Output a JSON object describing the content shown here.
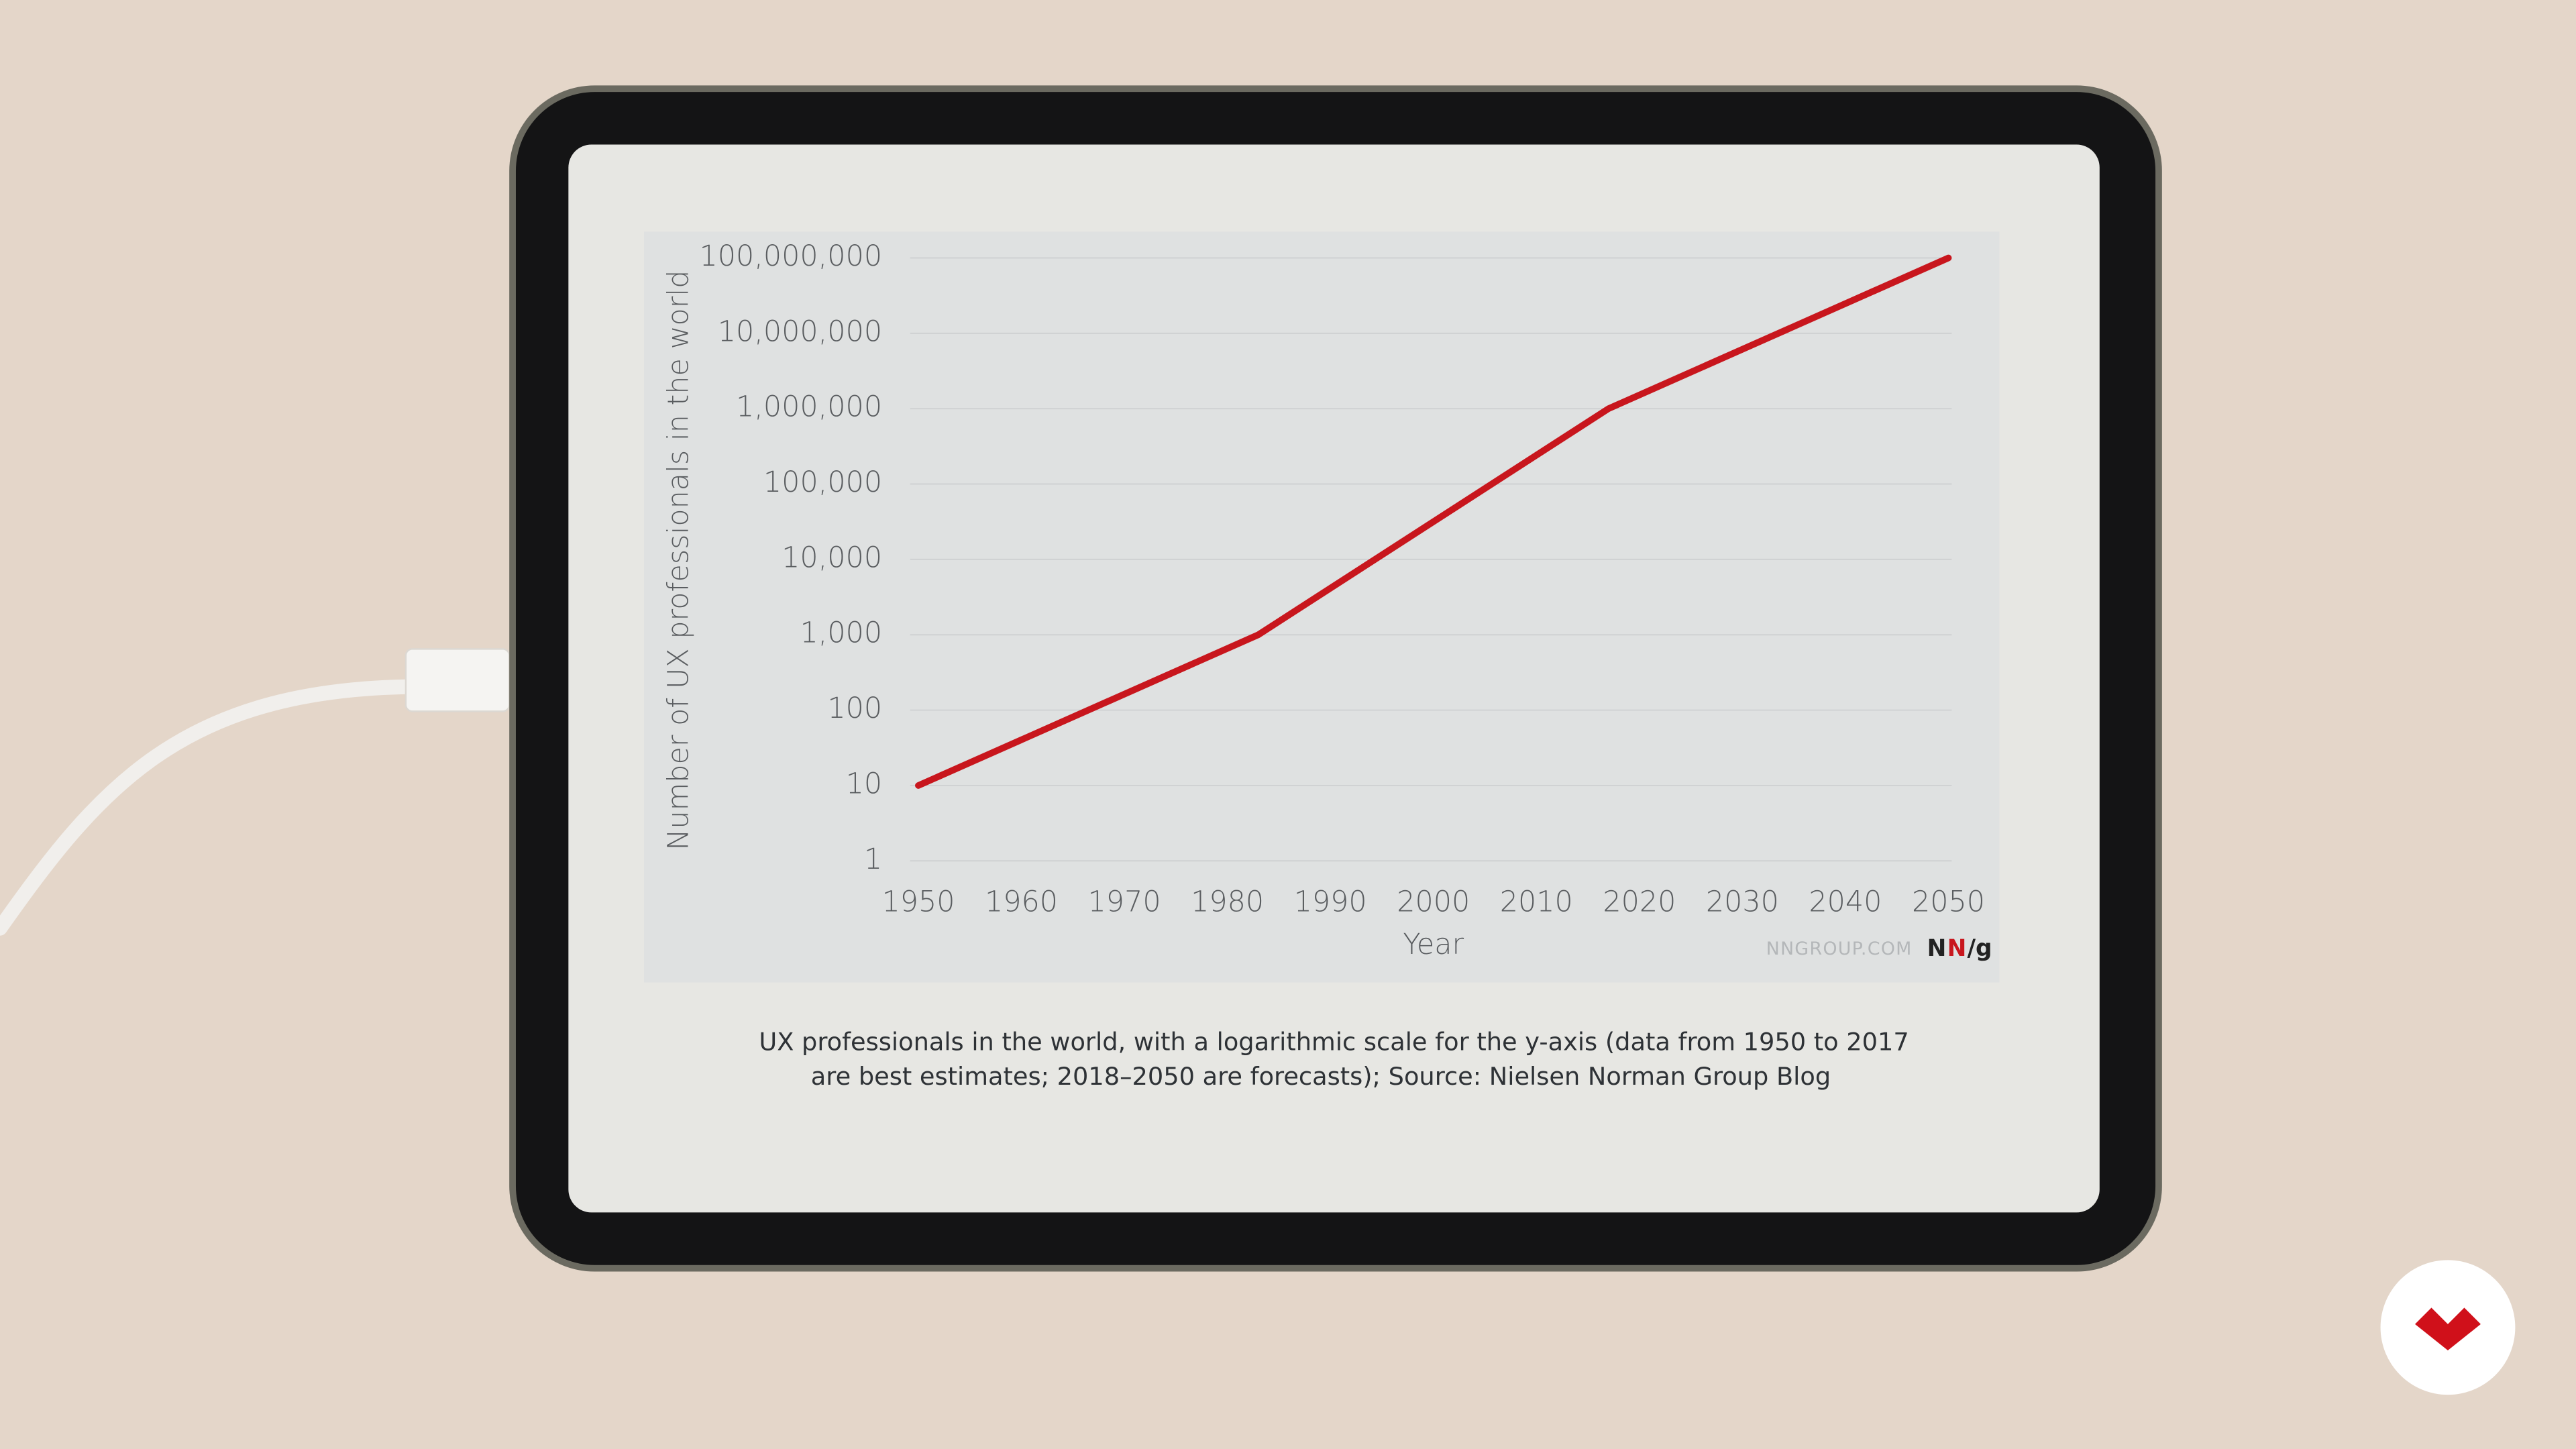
{
  "chart_data": {
    "type": "line",
    "y_label": "Number of UX professionals in the world",
    "x_label": "Year",
    "x": [
      1950,
      1983,
      2017,
      2050
    ],
    "values": [
      10,
      1000,
      1000000,
      100000000
    ],
    "color": "#c8161d",
    "xlim": [
      1950,
      2050
    ],
    "xticks": [
      1950,
      1960,
      1970,
      1980,
      1990,
      2000,
      2010,
      2020,
      2030,
      2040,
      2050
    ],
    "ylim": [
      1,
      100000000
    ],
    "log_scale": true,
    "grid": true,
    "yticks": [
      1,
      10,
      100,
      {
        "value": 1000,
        "label": "1,000"
      },
      {
        "value": 10000,
        "label": "10,000"
      },
      {
        "value": 100000,
        "label": "100,000"
      },
      {
        "value": 1000000,
        "label": "1,000,000"
      },
      {
        "value": 10000000,
        "label": "10,000,000"
      },
      {
        "value": 100000000,
        "label": "100,000,000"
      }
    ],
    "watermark": "NNGROUP.COM",
    "logo": [
      "N",
      "N",
      "/g"
    ],
    "caption": [
      "UX professionals in the world, with a logarithmic scale for the y-axis (data from 1950 to 2017",
      "are best estimates; 2018–2050 are forecasts); Source: Nielsen Norman Group Blog"
    ]
  }
}
